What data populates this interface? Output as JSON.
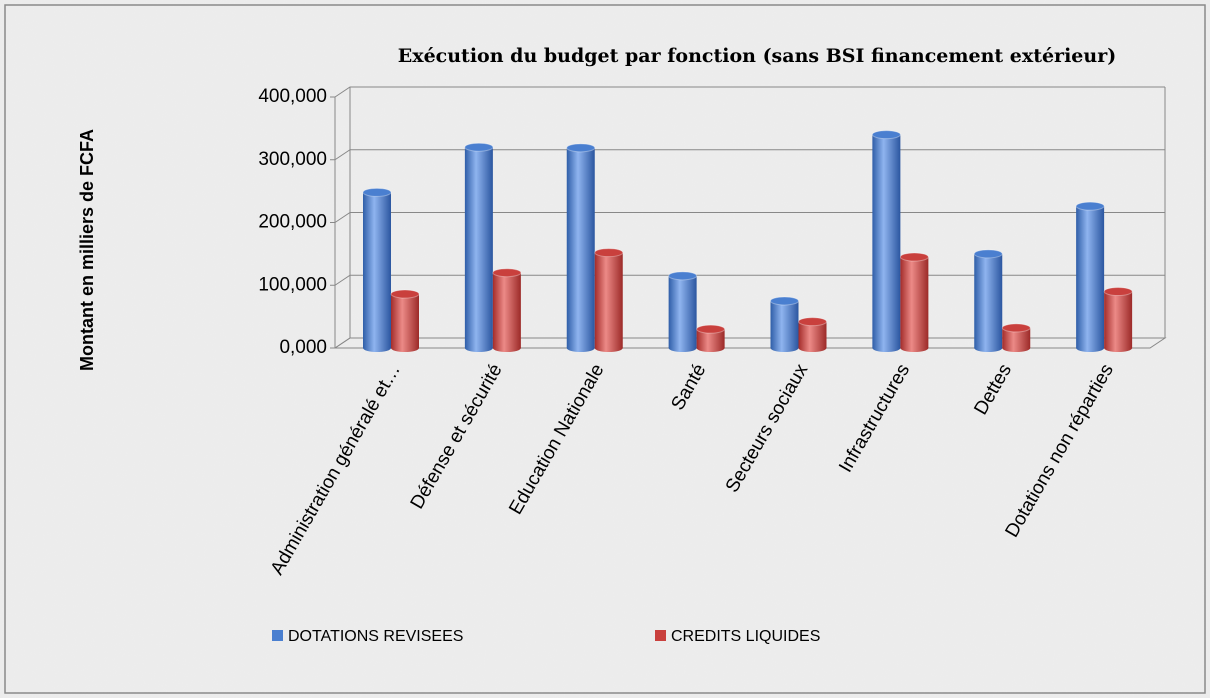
{
  "chart_data": {
    "type": "bar",
    "title": "Exécution du budget par fonction (sans BSI financement extérieur)",
    "y_label": "Montant en milliers de FCFA",
    "categories": [
      "Administration généralé et…",
      "Défense et sécurité",
      "Education Nationale",
      "Santé",
      "Secteurs sociaux",
      "Infrastructures",
      "Dettes",
      "Dotations non réparties"
    ],
    "series": [
      {
        "name": "DOTATIONS REVISEES",
        "color": "#4a7fd0",
        "values": [
          248000,
          320000,
          319000,
          115000,
          75000,
          340000,
          150000,
          226000
        ]
      },
      {
        "name": "CREDITS LIQUIDES",
        "color": "#c9403d",
        "values": [
          86000,
          120000,
          152000,
          30000,
          42000,
          145000,
          32000,
          90000
        ]
      }
    ],
    "ylim": [
      0,
      400000
    ],
    "yticks": [
      {
        "value": 0,
        "label": "0,000"
      },
      {
        "value": 100000,
        "label": "100,000"
      },
      {
        "value": 200000,
        "label": "200,000"
      },
      {
        "value": 300000,
        "label": "300,000"
      },
      {
        "value": 400000,
        "label": "400,000"
      }
    ],
    "grid": true,
    "legend": "bottom"
  }
}
